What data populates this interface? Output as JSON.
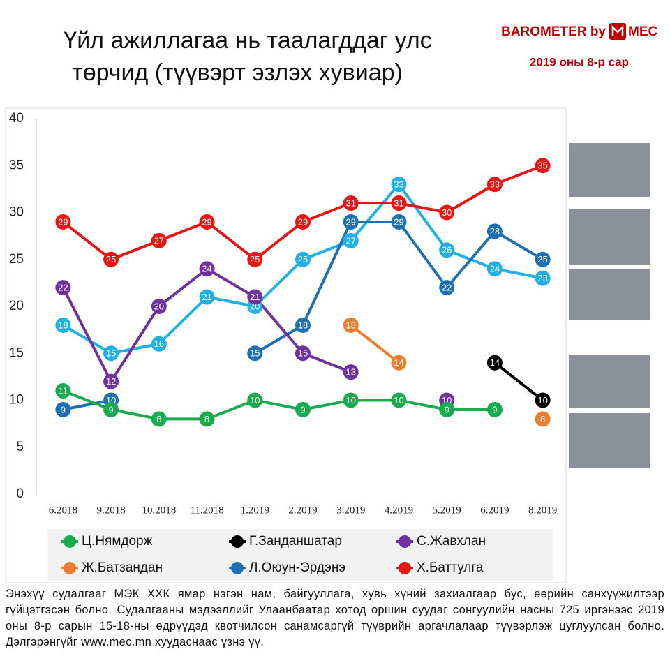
{
  "chart_data": {
    "type": "line",
    "title": [
      "Үйл ажиллагаа нь таалагддаг улс",
      "төрчид (түүвэрт эзлэх хувиар)"
    ],
    "brand": [
      "BAROMETER by",
      "MEC"
    ],
    "subtitle": "2019 оны 8-р сар",
    "categories": [
      "6.2018",
      "9.2018",
      "10.2018",
      "11.2018",
      "1.2019",
      "2.2019",
      "3.2019",
      "4.2019",
      "5.2019",
      "6.2019",
      "8.2019"
    ],
    "series": [
      {
        "name": "Ц.Нямдорж",
        "color": "#1aab4f",
        "values": [
          11,
          9,
          8,
          8,
          10,
          9,
          10,
          10,
          9,
          9,
          null
        ]
      },
      {
        "name": "Г.Занданшатар",
        "color": "#000000",
        "values": [
          null,
          null,
          null,
          null,
          null,
          null,
          null,
          null,
          null,
          14,
          10
        ]
      },
      {
        "name": "С.Жавхлан",
        "color": "#7030a0",
        "values": [
          22,
          12,
          20,
          24,
          21,
          15,
          13,
          null,
          10,
          null,
          null
        ]
      },
      {
        "name": "Ж.Батзандан",
        "color": "#ed7d31",
        "values": [
          null,
          null,
          null,
          null,
          null,
          null,
          18,
          14,
          null,
          null,
          8
        ]
      },
      {
        "name": "Л.Оюун-Эрдэнэ",
        "color": "#1f6fb5",
        "values": [
          9,
          10,
          null,
          null,
          15,
          18,
          29,
          29,
          22,
          28,
          25
        ]
      },
      {
        "name": "Х.Баттулга",
        "color": "#e81515",
        "values": [
          29,
          25,
          27,
          29,
          25,
          29,
          31,
          31,
          30,
          33,
          35
        ]
      },
      {
        "color": "#1fb0e8",
        "values": [
          18,
          15,
          16,
          21,
          20,
          25,
          27,
          33,
          26,
          24,
          23
        ]
      }
    ],
    "ylim": [
      0,
      40
    ],
    "yticks": [
      0,
      5,
      10,
      15,
      20,
      25,
      30,
      35,
      40
    ],
    "grid": false,
    "note": "Энэхүү судалгааг МЭК ХХК ямар нэгэн нам, байгууллага, хувь хүний захиалгаар бус, өөрийн санхүүжилтээр гүйцэтгэсэн болно. Судалгааны мэдээллийг Улаанбаатар хотод оршин суудаг сонгуулийн насны 725 иргэнээс 2019 оны 8-р сарын 15-18-ны өдрүүдэд квотчилсон санамсаргүй түүврийн аргачлалаар түүвэрлэж цуглуулсан болно. Дэлгэрэнгүйг www.mec.mn хуудаснаас үзнэ үү."
  }
}
